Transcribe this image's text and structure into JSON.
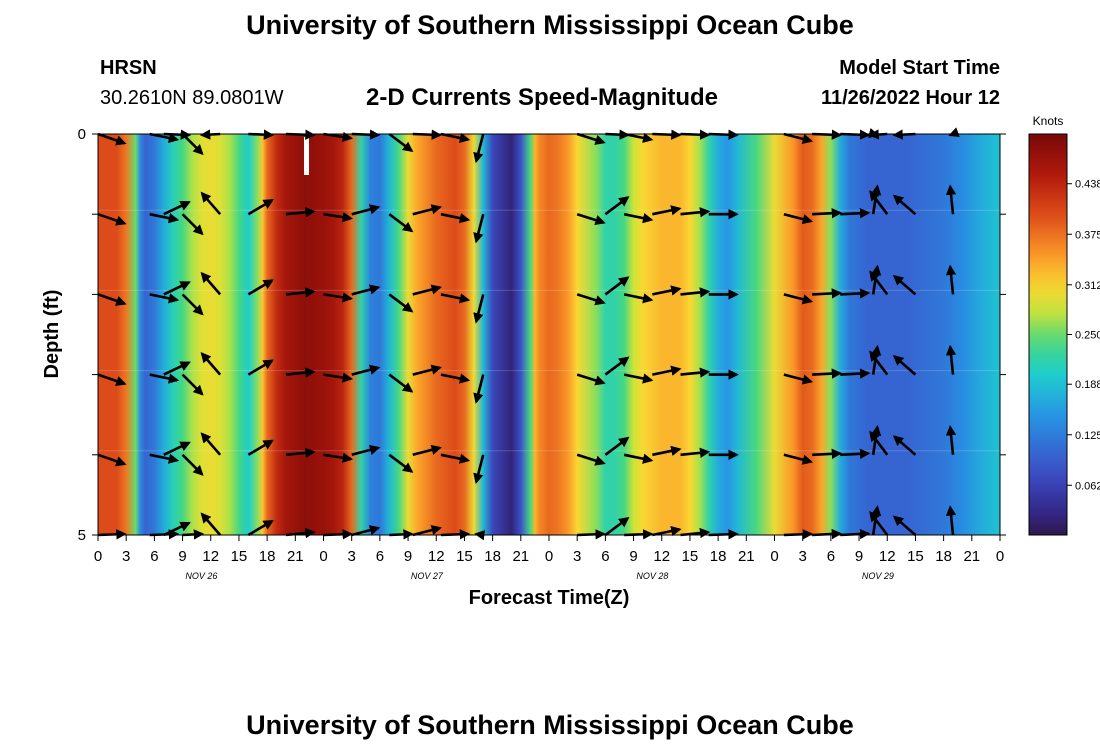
{
  "header": {
    "title": "University of Southern Mississippi Ocean Cube",
    "station": "HRSN",
    "coords": "30.2610N  89.0801W",
    "subtitle": "2-D Currents Speed-Magnitude",
    "model_start_label": "Model Start Time",
    "model_start_value": "11/26/2022 Hour 12",
    "units": "Knots"
  },
  "footer": {
    "title": "University of Southern Mississippi Ocean Cube"
  },
  "chart_data": {
    "type": "heatmap",
    "title": "2-D Currents Speed-Magnitude",
    "xlabel": "Forecast Time(Z)",
    "ylabel": "Depth (ft)",
    "x_range_hours": [
      0,
      96
    ],
    "y_range": [
      0,
      5
    ],
    "y_ticks": [
      "0",
      "5"
    ],
    "x_tick_hours": [
      0,
      3,
      6,
      9,
      12,
      15,
      18,
      21,
      24,
      27,
      30,
      33,
      36,
      39,
      42,
      45,
      48,
      51,
      54,
      57,
      60,
      63,
      66,
      69,
      72,
      75,
      78,
      81,
      84,
      87,
      90,
      93,
      96
    ],
    "x_tick_labels": [
      "0",
      "3",
      "6",
      "9",
      "12",
      "15",
      "18",
      "21",
      "0",
      "3",
      "6",
      "9",
      "12",
      "15",
      "18",
      "21",
      "0",
      "3",
      "6",
      "9",
      "12",
      "15",
      "18",
      "21",
      "0",
      "3",
      "6",
      "9",
      "12",
      "15",
      "18",
      "21",
      "0"
    ],
    "day_labels": [
      {
        "text": "NOV 26",
        "hour": 11
      },
      {
        "text": "NOV 27",
        "hour": 35
      },
      {
        "text": "NOV 28",
        "hour": 59
      },
      {
        "text": "NOV 29",
        "hour": 83
      }
    ],
    "colorbar": {
      "label": "Knots",
      "min": 0.0,
      "max": 0.5,
      "ticks": [
        "0.062",
        "0.125",
        "0.188",
        "0.250",
        "0.312",
        "0.375",
        "0.438"
      ],
      "tick_values": [
        0.062,
        0.125,
        0.188,
        0.25,
        0.312,
        0.375,
        0.438
      ]
    },
    "speed_profile": {
      "hours": [
        0,
        2,
        3,
        4,
        4.5,
        5,
        6,
        7,
        8,
        9,
        10,
        11,
        12,
        13,
        14,
        15,
        16,
        17,
        17.5,
        18,
        19,
        20,
        22,
        24,
        25,
        26,
        27,
        28,
        29,
        30,
        31,
        32,
        33,
        34,
        36,
        38,
        39,
        40,
        41,
        42,
        44,
        45,
        46,
        46.5,
        47,
        47.5,
        48,
        49,
        50,
        51,
        53,
        54,
        55,
        56,
        57,
        58,
        60,
        62,
        63,
        64,
        65,
        66,
        67,
        68,
        70,
        72,
        74,
        75,
        76,
        77,
        78,
        79,
        80,
        82,
        84,
        86,
        88,
        90,
        92,
        94,
        96
      ],
      "speed_knots": [
        0.4,
        0.4,
        0.37,
        0.25,
        0.14,
        0.1,
        0.12,
        0.17,
        0.21,
        0.24,
        0.27,
        0.29,
        0.3,
        0.29,
        0.27,
        0.24,
        0.2,
        0.26,
        0.32,
        0.38,
        0.43,
        0.46,
        0.48,
        0.47,
        0.46,
        0.44,
        0.38,
        0.22,
        0.13,
        0.12,
        0.18,
        0.24,
        0.3,
        0.34,
        0.38,
        0.4,
        0.38,
        0.3,
        0.18,
        0.07,
        0.02,
        0.08,
        0.24,
        0.33,
        0.36,
        0.37,
        0.38,
        0.37,
        0.35,
        0.31,
        0.26,
        0.22,
        0.22,
        0.24,
        0.28,
        0.31,
        0.33,
        0.33,
        0.31,
        0.27,
        0.22,
        0.17,
        0.15,
        0.18,
        0.24,
        0.3,
        0.35,
        0.39,
        0.38,
        0.34,
        0.26,
        0.17,
        0.12,
        0.1,
        0.1,
        0.1,
        0.11,
        0.12,
        0.14,
        0.17,
        0.19
      ]
    },
    "vector_depth_rows_ft": [
      0,
      1,
      2,
      3,
      4,
      5
    ],
    "vectors": [
      {
        "hour": 0,
        "u": 0.95,
        "v": -0.33
      },
      {
        "hour": 5.5,
        "u": 0.98,
        "v": -0.2
      },
      {
        "hour": 7,
        "u": 0.9,
        "v": 0.43
      },
      {
        "hour": 9,
        "u": 0.7,
        "v": -0.7
      },
      {
        "hour": 13,
        "u": -0.65,
        "v": 0.75
      },
      {
        "hour": 16,
        "u": 0.85,
        "v": 0.5
      },
      {
        "hour": 20,
        "u": 0.99,
        "v": 0.1
      },
      {
        "hour": 24,
        "u": 0.98,
        "v": -0.15
      },
      {
        "hour": 27,
        "u": 0.95,
        "v": 0.25
      },
      {
        "hour": 31,
        "u": 0.8,
        "v": -0.6
      },
      {
        "hour": 33.5,
        "u": 0.97,
        "v": 0.25
      },
      {
        "hour": 36.5,
        "u": 0.97,
        "v": -0.2
      },
      {
        "hour": 41,
        "u": -0.25,
        "v": -0.97
      },
      {
        "hour": 51,
        "u": 0.95,
        "v": -0.3
      },
      {
        "hour": 54,
        "u": 0.8,
        "v": 0.6
      },
      {
        "hour": 56,
        "u": 0.97,
        "v": -0.2
      },
      {
        "hour": 59,
        "u": 0.97,
        "v": 0.2
      },
      {
        "hour": 62,
        "u": 0.99,
        "v": 0.1
      },
      {
        "hour": 65,
        "u": 1.0,
        "v": 0.0
      },
      {
        "hour": 73,
        "u": 0.97,
        "v": -0.25
      },
      {
        "hour": 76,
        "u": 1.0,
        "v": 0.05
      },
      {
        "hour": 79,
        "u": 1.0,
        "v": 0.05
      },
      {
        "hour": 82.5,
        "u": 0.15,
        "v": 0.99
      },
      {
        "hour": 84,
        "u": -0.6,
        "v": 0.8
      },
      {
        "hour": 87,
        "u": -0.75,
        "v": 0.65
      },
      {
        "hour": 91,
        "u": -0.1,
        "v": 0.99
      }
    ]
  }
}
